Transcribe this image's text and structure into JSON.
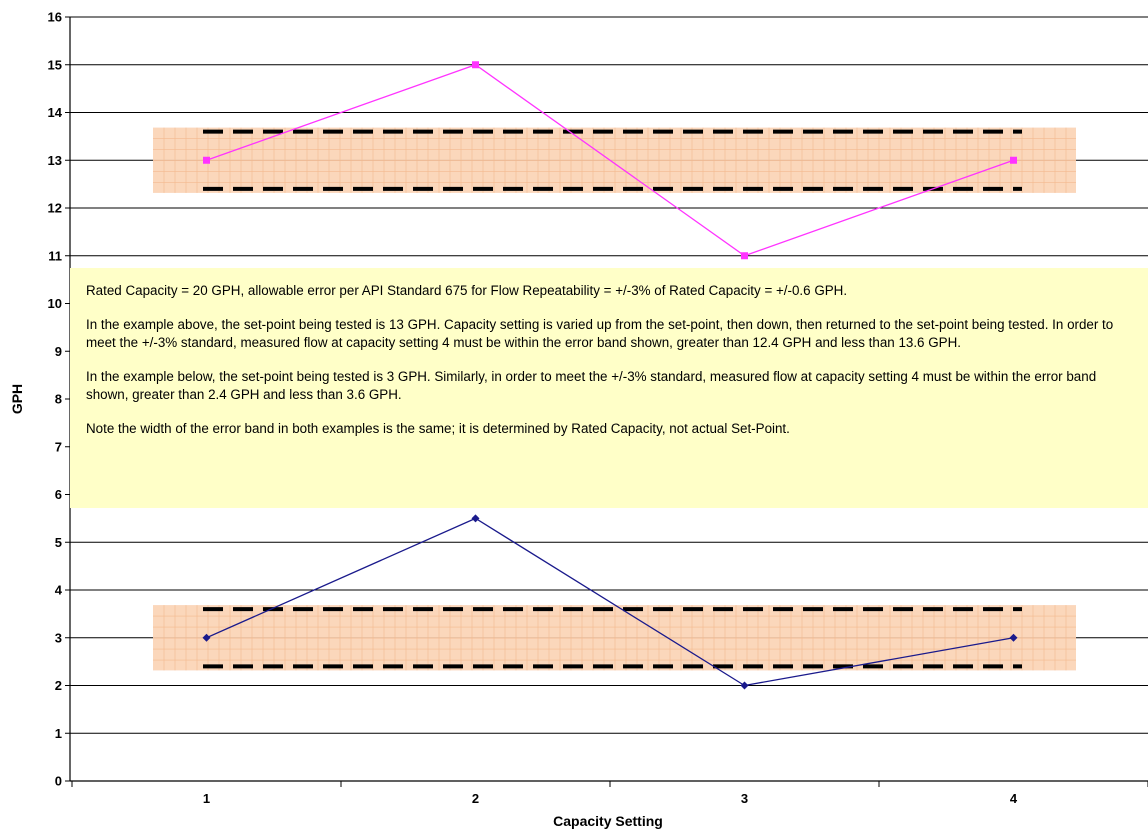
{
  "chart_data": {
    "type": "line",
    "xlabel": "Capacity Setting",
    "ylabel": "GPH",
    "categories": [
      "1",
      "2",
      "3",
      "4"
    ],
    "ylim": [
      0,
      16
    ],
    "yticks": [
      "0",
      "1",
      "2",
      "3",
      "4",
      "5",
      "6",
      "7",
      "8",
      "9",
      "10",
      "11",
      "12",
      "13",
      "14",
      "15",
      "16"
    ],
    "grid": true,
    "series": [
      {
        "values": [
          13,
          15,
          11,
          13
        ],
        "color": "#ff33ff",
        "marker": "square"
      },
      {
        "values": [
          3,
          5.5,
          2,
          3
        ],
        "color": "#1a1a8c",
        "marker": "diamond"
      }
    ],
    "error_bands": [
      {
        "center": 13,
        "low": 12.4,
        "high": 13.6,
        "fill": "#fbd3b4"
      },
      {
        "center": 3,
        "low": 2.4,
        "high": 3.6,
        "fill": "#fbd3b4"
      }
    ],
    "annotations": [
      "Rated Capacity = 20 GPH, allowable error per API Standard 675 for Flow Repeatability = +/-3% of Rated Capacity = +/-0.6 GPH.",
      "In the example above, the set-point being tested is 13 GPH.  Capacity setting is varied up from the set-point, then down, then returned to the set-point being tested.  In order to meet the +/-3% standard, measured flow at capacity setting 4 must be within the error band shown, greater than 12.4 GPH and less than 13.6 GPH.",
      "In the example below, the set-point being tested is 3 GPH.  Similarly, in order to meet the +/-3% standard, measured flow at capacity setting 4 must be within the error band shown, greater than 2.4 GPH and less than 3.6 GPH.",
      "Note the width of the error band in both examples is the same; it is determined by Rated Capacity, not actual Set-Point."
    ]
  }
}
